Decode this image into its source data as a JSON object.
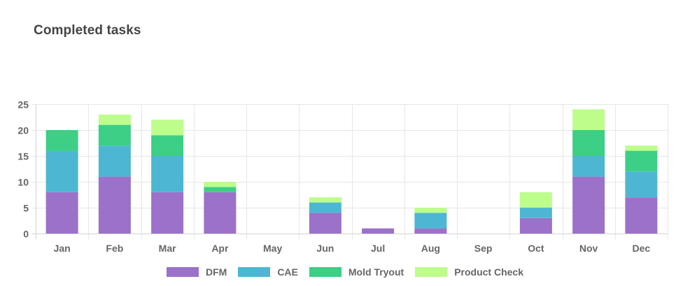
{
  "chart_data": {
    "type": "bar",
    "stacked": true,
    "title": "Completed tasks",
    "xlabel": "",
    "ylabel": "",
    "categories": [
      "Jan",
      "Feb",
      "Mar",
      "Apr",
      "May",
      "Jun",
      "Jul",
      "Aug",
      "Sep",
      "Oct",
      "Nov",
      "Dec"
    ],
    "ylim": [
      0,
      25
    ],
    "yticks": [
      0,
      5,
      10,
      15,
      20,
      25
    ],
    "grid": true,
    "legend_position": "bottom",
    "series": [
      {
        "name": "DFM",
        "color": "#9c71c9",
        "values": [
          8,
          11,
          8,
          8,
          0,
          4,
          1,
          1,
          0,
          3,
          11,
          7
        ]
      },
      {
        "name": "CAE",
        "color": "#4db7d3",
        "values": [
          8,
          6,
          7,
          0,
          0,
          2,
          0,
          3,
          0,
          2,
          4,
          5
        ]
      },
      {
        "name": "Mold Tryout",
        "color": "#3ccf85",
        "values": [
          4,
          4,
          4,
          1,
          0,
          0,
          0,
          0,
          0,
          0,
          5,
          4
        ]
      },
      {
        "name": "Product Check",
        "color": "#bdfd8c",
        "values": [
          0,
          2,
          3,
          1,
          0,
          1,
          0,
          1,
          0,
          3,
          4,
          1
        ]
      }
    ]
  }
}
